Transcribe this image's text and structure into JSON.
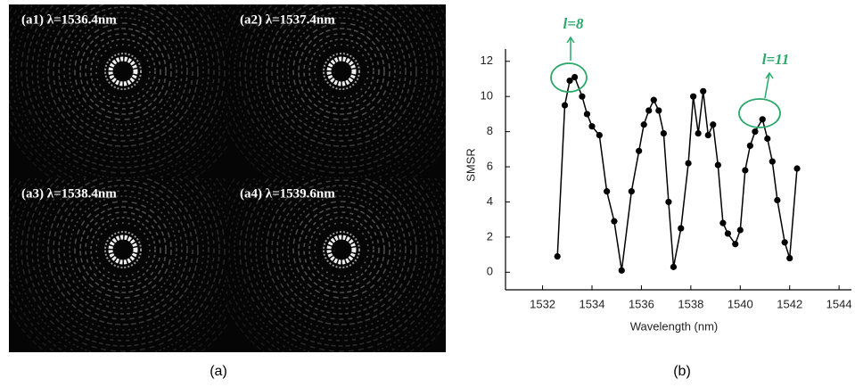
{
  "panel_a": {
    "label": "(a)",
    "images": [
      {
        "label": "(a1) λ=1536.4nm"
      },
      {
        "label": "(a2) λ=1537.4nm"
      },
      {
        "label": "(a3) λ=1538.4nm"
      },
      {
        "label": "(a4) λ=1539.6nm"
      }
    ]
  },
  "chart_data": {
    "type": "line",
    "label": "(b)",
    "xlabel": "Wavelength (nm)",
    "ylabel": "SMSR",
    "x": [
      1532.6,
      1532.9,
      1533.1,
      1533.3,
      1533.6,
      1533.8,
      1534.0,
      1534.3,
      1534.6,
      1534.9,
      1535.2,
      1535.6,
      1535.9,
      1536.1,
      1536.3,
      1536.5,
      1536.7,
      1536.9,
      1537.1,
      1537.3,
      1537.6,
      1537.9,
      1538.1,
      1538.3,
      1538.5,
      1538.7,
      1538.9,
      1539.1,
      1539.3,
      1539.5,
      1539.8,
      1540.0,
      1540.2,
      1540.4,
      1540.6,
      1540.9,
      1541.1,
      1541.3,
      1541.5,
      1541.8,
      1542.0,
      1542.3
    ],
    "values": [
      0.9,
      9.5,
      10.9,
      11.1,
      10.0,
      9.0,
      8.3,
      7.8,
      4.6,
      2.9,
      0.1,
      4.6,
      6.9,
      8.4,
      9.2,
      9.8,
      9.2,
      7.9,
      4.0,
      0.3,
      2.5,
      6.2,
      10.0,
      7.9,
      10.3,
      7.8,
      8.4,
      6.1,
      2.8,
      2.2,
      1.6,
      2.4,
      5.8,
      7.2,
      8.0,
      8.7,
      7.6,
      6.3,
      4.1,
      1.7,
      0.8,
      5.9
    ],
    "color": "#000000",
    "xlim": [
      1530.5,
      1544.5
    ],
    "ylim": [
      -1,
      12.7
    ],
    "xticks": [
      1532,
      1534,
      1536,
      1538,
      1540,
      1542,
      1544
    ],
    "yticks": [
      0,
      2,
      4,
      6,
      8,
      10,
      12
    ],
    "annotations": [
      {
        "text": "l=8"
      },
      {
        "text": "l=11"
      }
    ]
  }
}
